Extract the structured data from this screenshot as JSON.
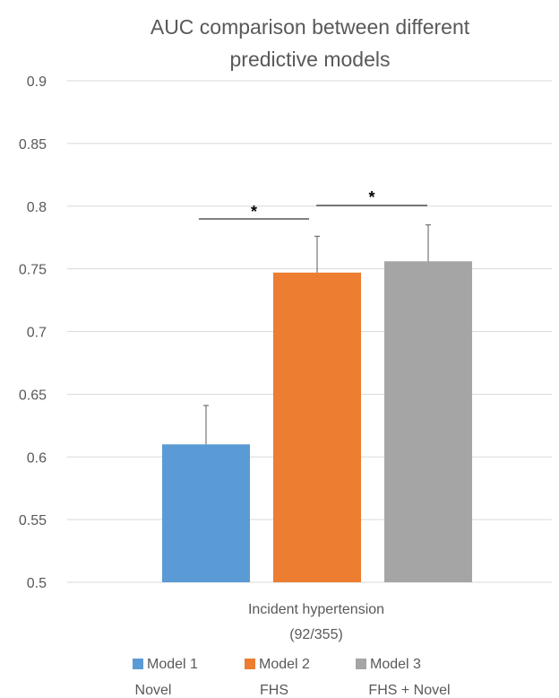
{
  "chart_data": {
    "type": "bar",
    "title": "AUC comparison between different predictive models",
    "title_lines": [
      "AUC comparison between different",
      "predictive models"
    ],
    "category_lines": [
      "Incident hypertension",
      "(92/355)"
    ],
    "ylim": [
      0.5,
      0.9
    ],
    "yticks": [
      "0.9",
      "0.85",
      "0.8",
      "0.75",
      "0.7",
      "0.65",
      "0.6",
      "0.55",
      "0.5"
    ],
    "grid": true,
    "legend_position": "bottom",
    "series": [
      {
        "name": "Model 1",
        "sublabel": "Novel",
        "value": 0.61,
        "error_upper": 0.641,
        "color": "#5b9bd5"
      },
      {
        "name": "Model 2",
        "sublabel": "FHS",
        "value": 0.747,
        "error_upper": 0.776,
        "color": "#ed7d31"
      },
      {
        "name": "Model 3",
        "sublabel": "FHS + Novel",
        "value": 0.756,
        "error_upper": 0.785,
        "color": "#a5a5a5"
      }
    ],
    "significance": [
      {
        "between": [
          0,
          1
        ],
        "label": "*"
      },
      {
        "between": [
          1,
          2
        ],
        "label": "*"
      }
    ]
  }
}
